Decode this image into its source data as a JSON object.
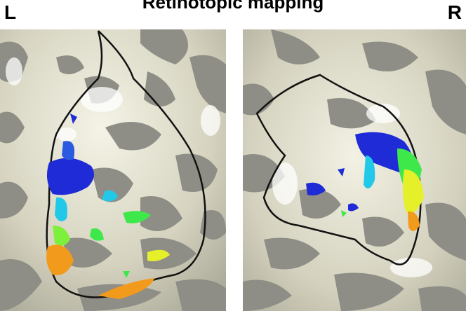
{
  "figure": {
    "title": "Retinotopic mapping",
    "left_label": "L",
    "right_label": "R"
  },
  "panels": [
    {
      "hemisphere": "left",
      "surface": "inflated cortex",
      "overlay": "retinotopic map, blue-to-red phase colors"
    },
    {
      "hemisphere": "right",
      "surface": "inflated cortex",
      "overlay": "retinotopic map, blue-to-red phase colors"
    }
  ],
  "colors": {
    "gyri": "#d8d6c4",
    "sulci": "#8e8e86",
    "outline": "#111111",
    "map_blue": "#1e2bd6",
    "map_cyan": "#22c8e8",
    "map_green": "#3ee84a",
    "map_yellow": "#e6f02a",
    "map_orange": "#f29a1c"
  }
}
